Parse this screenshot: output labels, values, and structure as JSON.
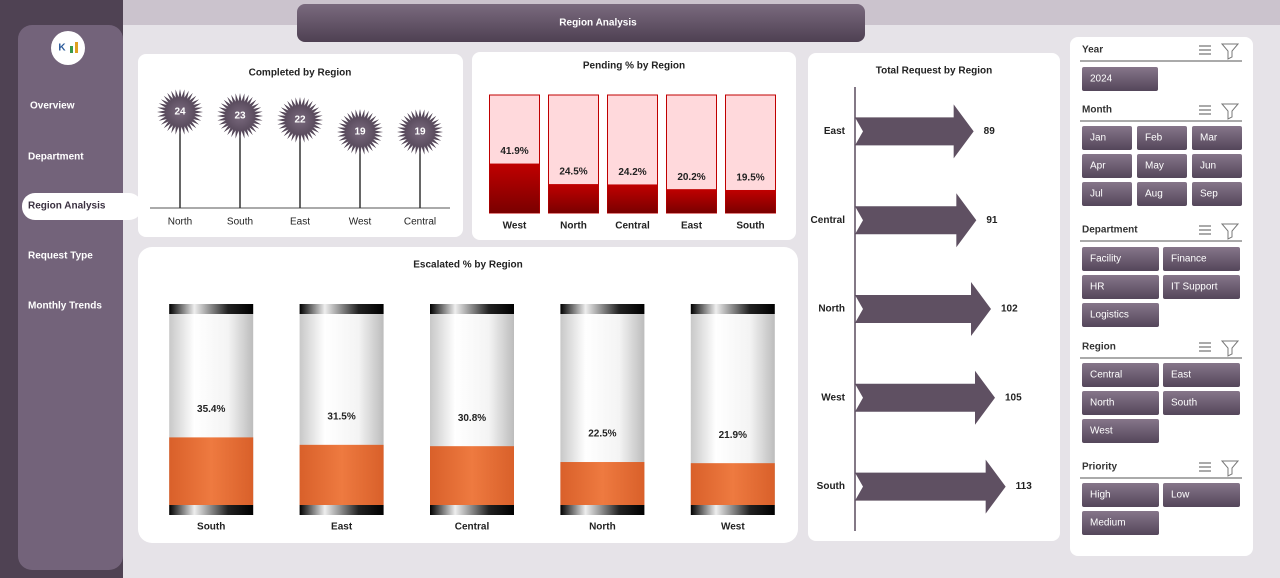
{
  "dashboard": {
    "title": "Region Analysis",
    "nav": [
      "Overview",
      "Department",
      "Region Analysis",
      "Request Type",
      "Monthly Trends"
    ],
    "slicers": [
      {
        "title": "Year",
        "items": [
          "2024"
        ]
      },
      {
        "title": "Month",
        "items": [
          "Jan",
          "Feb",
          "Mar",
          "Apr",
          "May",
          "Jun",
          "Jul",
          "Aug",
          "Sep"
        ]
      },
      {
        "title": "Department",
        "items": [
          "Facility",
          "Finance",
          "HR",
          "IT Support",
          "Logistics"
        ]
      },
      {
        "title": "Region",
        "items": [
          "Central",
          "East",
          "North",
          "South",
          "West"
        ]
      },
      {
        "title": "Priority",
        "items": [
          "High",
          "Low",
          "Medium"
        ]
      }
    ]
  },
  "chart_data": [
    {
      "type": "lollipop",
      "title": "Completed by Region",
      "categories": [
        "North",
        "South",
        "East",
        "West",
        "Central"
      ],
      "values": [
        24,
        23,
        22,
        19,
        19
      ],
      "color": "#5a4c5e",
      "ylim": [
        0,
        30
      ]
    },
    {
      "type": "bar",
      "title": "Pending % by Region",
      "categories": [
        "West",
        "North",
        "Central",
        "East",
        "South"
      ],
      "values": [
        41.9,
        24.5,
        24.2,
        20.2,
        19.5
      ],
      "value_labels": [
        "41.9%",
        "24.5%",
        "24.2%",
        "20.2%",
        "19.5%"
      ],
      "color": "#c00000",
      "ylim": [
        0,
        100
      ]
    },
    {
      "type": "cylinder",
      "title": "Escalated % by Region",
      "categories": [
        "South",
        "East",
        "Central",
        "North",
        "West"
      ],
      "values": [
        35.4,
        31.5,
        30.8,
        22.5,
        21.9
      ],
      "value_labels": [
        "35.4%",
        "31.5%",
        "30.8%",
        "22.5%",
        "21.9%"
      ],
      "color": "#e46c2e",
      "ylim": [
        0,
        100
      ]
    },
    {
      "type": "arrow",
      "title": "Total Request by Region",
      "categories": [
        "East",
        "Central",
        "North",
        "West",
        "South"
      ],
      "values": [
        89,
        91,
        102,
        105,
        113
      ],
      "color": "#5f5062",
      "xlim": [
        0,
        150
      ]
    }
  ]
}
